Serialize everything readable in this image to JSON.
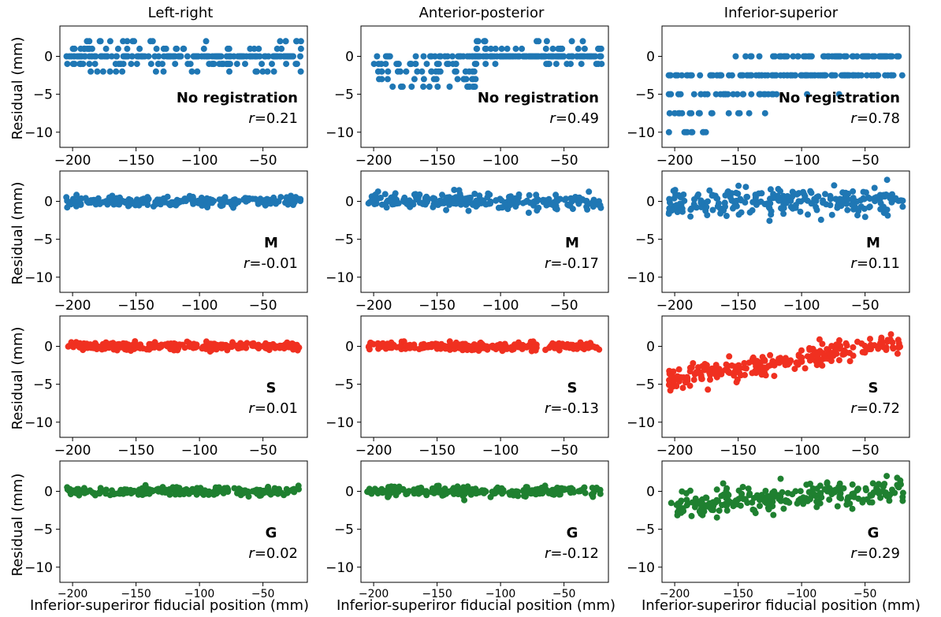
{
  "figure": {
    "column_titles": [
      "Left-right",
      "Anterior-posterior",
      "Inferior-superior"
    ],
    "ylabel": "Residual (mm)",
    "xlabel": "Inferior-superiror fiducial position (mm)",
    "row_labels": [
      "No registration",
      "M",
      "S",
      "G"
    ],
    "row_colors": [
      "#1f77b4",
      "#1f77b4",
      "#f03020",
      "#1f8030"
    ],
    "xlim": [
      -210,
      -15
    ],
    "ylim": [
      -12,
      4
    ],
    "xticks": [
      -200,
      -150,
      -100,
      -50
    ],
    "yticks": [
      0,
      -5,
      -10
    ]
  },
  "chart_data": [
    {
      "type": "scatter",
      "row": "No registration",
      "column": "Left-right",
      "label": "No registration",
      "r_value": "0.21",
      "color": "#1f77b4",
      "pattern": "quantized",
      "levels": [
        2,
        1,
        0,
        -1,
        -2
      ],
      "x_range": [
        -205,
        -20
      ],
      "trend": 0
    },
    {
      "type": "scatter",
      "row": "No registration",
      "column": "Anterior-posterior",
      "label": "No registration",
      "r_value": "0.49",
      "color": "#1f77b4",
      "pattern": "quantized_ap",
      "levels": [
        2,
        1,
        0,
        -1,
        -2,
        -3,
        -4
      ],
      "x_range": [
        -200,
        -20
      ],
      "trend": 0.5
    },
    {
      "type": "scatter",
      "row": "No registration",
      "column": "Inferior-superior",
      "label": "No registration",
      "r_value": "0.78",
      "color": "#1f77b4",
      "pattern": "quantized_is",
      "levels": [
        0,
        -2.5,
        -5,
        -7.5,
        -10
      ],
      "x_range": [
        -205,
        -20
      ],
      "trend": 1
    },
    {
      "type": "scatter",
      "row": "M",
      "column": "Left-right",
      "label": "M",
      "r_value": "-0.01",
      "color": "#1f77b4",
      "pattern": "noise",
      "spread": 0.6,
      "x_range": [
        -205,
        -20
      ],
      "trend": 0
    },
    {
      "type": "scatter",
      "row": "M",
      "column": "Anterior-posterior",
      "label": "M",
      "r_value": "-0.17",
      "color": "#1f77b4",
      "pattern": "noise",
      "spread": 0.8,
      "x_range": [
        -205,
        -20
      ],
      "trend": -0.2
    },
    {
      "type": "scatter",
      "row": "M",
      "column": "Inferior-superior",
      "label": "M",
      "r_value": "0.11",
      "color": "#1f77b4",
      "pattern": "noise",
      "spread": 1.6,
      "x_range": [
        -205,
        -20
      ],
      "trend": 0.1
    },
    {
      "type": "scatter",
      "row": "S",
      "column": "Left-right",
      "label": "S",
      "r_value": "0.01",
      "color": "#f03020",
      "pattern": "noise",
      "spread": 0.5,
      "x_range": [
        -205,
        -20
      ],
      "trend": 0
    },
    {
      "type": "scatter",
      "row": "S",
      "column": "Anterior-posterior",
      "label": "S",
      "r_value": "-0.13",
      "color": "#f03020",
      "pattern": "noise",
      "spread": 0.5,
      "x_range": [
        -205,
        -20
      ],
      "trend": -0.1
    },
    {
      "type": "scatter",
      "row": "S",
      "column": "Inferior-superior",
      "label": "S",
      "r_value": "0.72",
      "color": "#f03020",
      "pattern": "trend",
      "spread": 1.2,
      "x_range": [
        -205,
        -20
      ],
      "trend": 1,
      "y_at_left": -4.5,
      "y_at_right": 0.7
    },
    {
      "type": "scatter",
      "row": "G",
      "column": "Left-right",
      "label": "G",
      "r_value": "0.02",
      "color": "#1f8030",
      "pattern": "noise",
      "spread": 0.5,
      "x_range": [
        -205,
        -20
      ],
      "trend": 0
    },
    {
      "type": "scatter",
      "row": "G",
      "column": "Anterior-posterior",
      "label": "G",
      "r_value": "-0.12",
      "color": "#1f8030",
      "pattern": "noise",
      "spread": 0.6,
      "x_range": [
        -205,
        -20
      ],
      "trend": -0.1
    },
    {
      "type": "scatter",
      "row": "G",
      "column": "Inferior-superior",
      "label": "G",
      "r_value": "0.29",
      "color": "#1f8030",
      "pattern": "trend",
      "spread": 1.4,
      "x_range": [
        -205,
        -20
      ],
      "trend": 0.3,
      "y_at_left": -1.8,
      "y_at_right": 0.2
    }
  ]
}
